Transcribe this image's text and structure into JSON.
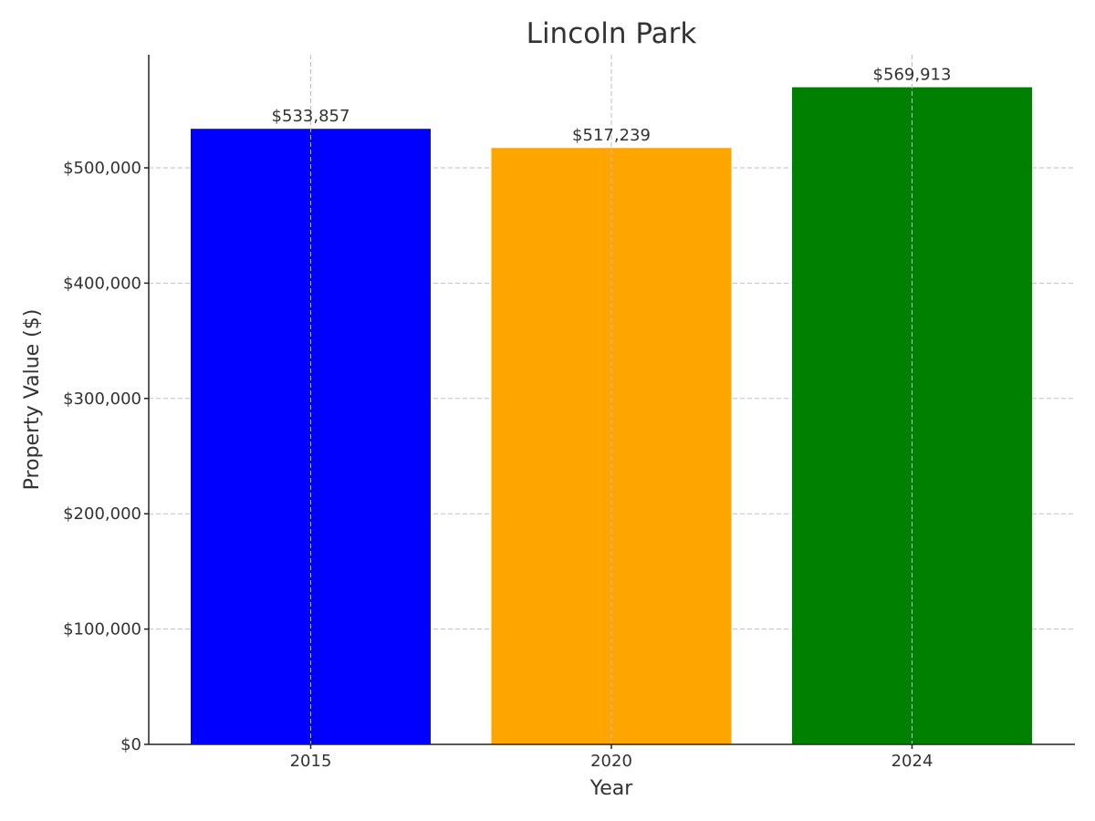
{
  "chart_data": {
    "type": "bar",
    "title": "Lincoln Park",
    "xlabel": "Year",
    "ylabel": "Property Value ($)",
    "categories": [
      "2015",
      "2020",
      "2024"
    ],
    "values": [
      533857,
      517239,
      569913
    ],
    "value_labels": [
      "$533,857",
      "$517,239",
      "$569,913"
    ],
    "colors": [
      "#0000ff",
      "#ffa500",
      "#008000"
    ],
    "ylim": [
      0,
      600000
    ],
    "yticks": [
      0,
      100000,
      200000,
      300000,
      400000,
      500000
    ],
    "ytick_labels": [
      "$0",
      "$100,000",
      "$200,000",
      "$300,000",
      "$400,000",
      "$500,000"
    ],
    "grid": true
  }
}
